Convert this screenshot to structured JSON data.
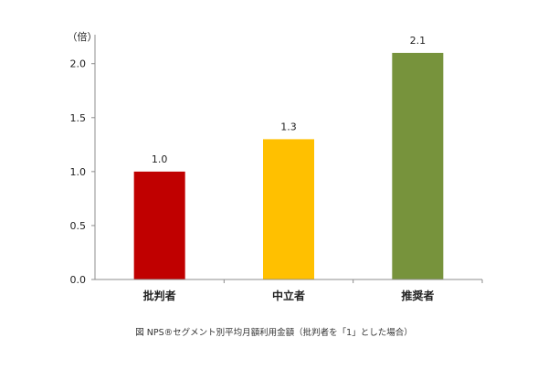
{
  "chart_data": {
    "type": "bar",
    "categories": [
      "批判者",
      "中立者",
      "推奨者"
    ],
    "values": [
      1.0,
      1.3,
      2.1
    ],
    "data_labels": [
      "1.0",
      "1.3",
      "2.1"
    ],
    "bar_colors": [
      "#c00000",
      "#ffc000",
      "#77933c"
    ],
    "y_unit": "（倍）",
    "yticks": [
      "0.0",
      "0.5",
      "1.0",
      "1.5",
      "2.0"
    ],
    "ylim": [
      0,
      2.3
    ],
    "grid": false
  },
  "caption": "図 NPS®セグメント別平均月額利用金額（批判者を「1」とした場合）"
}
